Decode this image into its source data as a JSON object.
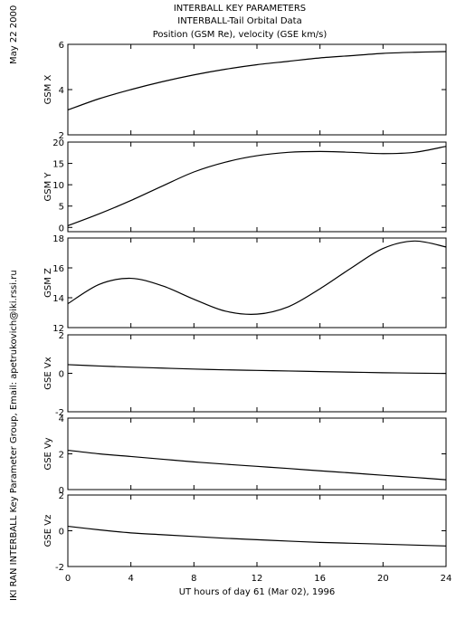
{
  "header": {
    "line1": "INTERBALL KEY PARAMETERS",
    "line2": "INTERBALL-Tail Orbital Data",
    "line3": "Position (GSM Re), velocity (GSE km/s)"
  },
  "side_date": "May 22 2000",
  "side_credit": "IKI RAN INTERBALL Key Parameter Group, Email: apetrukovich@iki.rssi.ru",
  "chart_data": [
    {
      "type": "line",
      "ylabel": "GSM X",
      "ylim": [
        2,
        6
      ],
      "yticks": [
        "2",
        "4",
        "6"
      ],
      "x": [
        0,
        2,
        4,
        6,
        8,
        10,
        12,
        14,
        16,
        18,
        20,
        22,
        24
      ],
      "series": [
        {
          "values": [
            3.1,
            3.6,
            4.0,
            4.35,
            4.65,
            4.9,
            5.1,
            5.25,
            5.4,
            5.5,
            5.6,
            5.65,
            5.68
          ]
        }
      ]
    },
    {
      "type": "line",
      "ylabel": "GSM Y",
      "ylim": [
        -1,
        20
      ],
      "yticks": [
        "0",
        "5",
        "10",
        "15",
        "20"
      ],
      "x": [
        0,
        2,
        4,
        6,
        8,
        10,
        12,
        14,
        16,
        18,
        20,
        22,
        24
      ],
      "series": [
        {
          "values": [
            0.4,
            3.2,
            6.3,
            9.7,
            13.0,
            15.3,
            16.8,
            17.6,
            17.8,
            17.6,
            17.3,
            17.6,
            19.0
          ]
        }
      ]
    },
    {
      "type": "line",
      "ylabel": "GSM Z",
      "ylim": [
        12,
        18
      ],
      "yticks": [
        "12",
        "14",
        "16",
        "18"
      ],
      "x": [
        0,
        2,
        4,
        6,
        8,
        10,
        12,
        14,
        16,
        18,
        20,
        22,
        24
      ],
      "series": [
        {
          "values": [
            13.6,
            14.9,
            15.3,
            14.8,
            13.9,
            13.1,
            12.9,
            13.4,
            14.6,
            16.0,
            17.3,
            17.8,
            17.4
          ]
        }
      ]
    },
    {
      "type": "line",
      "ylabel": "GSE Vx",
      "ylim": [
        -2,
        2
      ],
      "yticks": [
        "-2",
        "0",
        "2"
      ],
      "x": [
        0,
        2,
        4,
        6,
        8,
        10,
        12,
        14,
        16,
        18,
        20,
        22,
        24
      ],
      "series": [
        {
          "values": [
            0.45,
            0.38,
            0.32,
            0.27,
            0.22,
            0.18,
            0.15,
            0.12,
            0.09,
            0.06,
            0.03,
            0.01,
            -0.01
          ]
        }
      ]
    },
    {
      "type": "line",
      "ylabel": "GSE Vy",
      "ylim": [
        0,
        4
      ],
      "yticks": [
        "0",
        "2",
        "4"
      ],
      "x": [
        0,
        2,
        4,
        6,
        8,
        10,
        12,
        14,
        16,
        18,
        20,
        22,
        24
      ],
      "series": [
        {
          "values": [
            2.2,
            2.0,
            1.85,
            1.7,
            1.55,
            1.42,
            1.3,
            1.18,
            1.05,
            0.93,
            0.8,
            0.68,
            0.55
          ]
        }
      ]
    },
    {
      "type": "line",
      "ylabel": "GSE Vz",
      "ylim": [
        -2,
        2
      ],
      "yticks": [
        "-2",
        "0",
        "2"
      ],
      "x": [
        0,
        2,
        4,
        6,
        8,
        10,
        12,
        14,
        16,
        18,
        20,
        22,
        24
      ],
      "series": [
        {
          "values": [
            0.25,
            0.05,
            -0.12,
            -0.22,
            -0.32,
            -0.42,
            -0.5,
            -0.58,
            -0.65,
            -0.7,
            -0.75,
            -0.8,
            -0.85
          ]
        }
      ]
    }
  ],
  "x_axis": {
    "xlim": [
      0,
      24
    ],
    "ticks": [
      "0",
      "4",
      "8",
      "12",
      "16",
      "20",
      "24"
    ],
    "label": "UT hours of day  61 (Mar 02), 1996"
  }
}
